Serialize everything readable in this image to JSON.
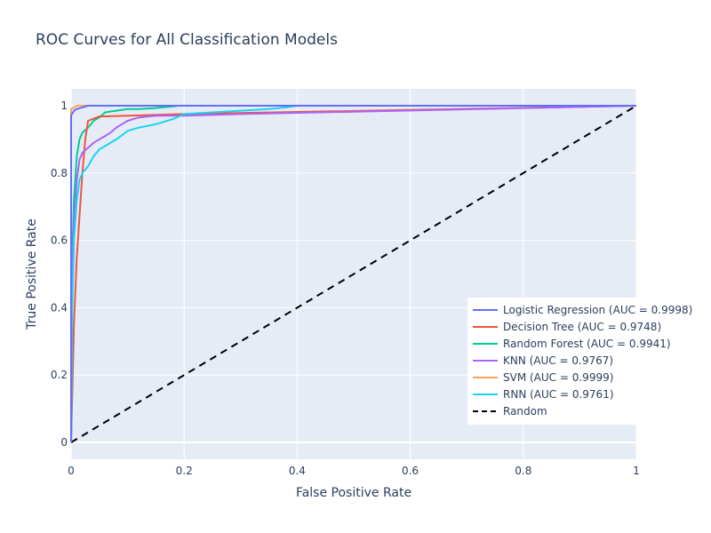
{
  "chart_data": {
    "type": "line",
    "title": "ROC Curves for All Classification Models",
    "xlabel": "False Positive Rate",
    "ylabel": "True Positive Rate",
    "xlim": [
      0,
      1
    ],
    "ylim": [
      -0.05,
      1.05
    ],
    "xticks": [
      "0",
      "0.2",
      "0.4",
      "0.6",
      "0.8",
      "1"
    ],
    "yticks": [
      "0",
      "0.2",
      "0.4",
      "0.6",
      "0.8",
      "1"
    ],
    "grid": true,
    "legend_position": "bottom-right",
    "plot_background": "#E5ECF6",
    "series": [
      {
        "name": "Logistic Regression (AUC = 0.9998)",
        "color": "#636EFA",
        "dash": "solid",
        "x": [
          0,
          0,
          0.005,
          0.01,
          0.02,
          0.03,
          0.05,
          1
        ],
        "y": [
          0,
          0.97,
          0.985,
          0.99,
          0.995,
          1.0,
          1.0,
          1.0
        ]
      },
      {
        "name": "Decision Tree (AUC = 0.9748)",
        "color": "#EF553B",
        "dash": "solid",
        "x": [
          0,
          0.005,
          0.01,
          0.02,
          0.025,
          0.03,
          0.05,
          0.1,
          0.2,
          1
        ],
        "y": [
          0,
          0.35,
          0.55,
          0.8,
          0.9,
          0.955,
          0.968,
          0.97,
          0.975,
          1.0
        ]
      },
      {
        "name": "Random Forest (AUC = 0.9941)",
        "color": "#00CC96",
        "dash": "solid",
        "x": [
          0,
          0.002,
          0.005,
          0.01,
          0.015,
          0.02,
          0.03,
          0.04,
          0.05,
          0.06,
          0.08,
          0.1,
          0.12,
          0.15,
          0.18,
          0.19
        ],
        "y": [
          0,
          0.55,
          0.72,
          0.85,
          0.9,
          0.92,
          0.935,
          0.955,
          0.965,
          0.98,
          0.985,
          0.99,
          0.99,
          0.993,
          0.998,
          1.0
        ]
      },
      {
        "name": "KNN (AUC = 0.9767)",
        "color": "#AB63FA",
        "dash": "solid",
        "x": [
          0,
          0.002,
          0.005,
          0.01,
          0.015,
          0.02,
          0.03,
          0.04,
          0.05,
          0.06,
          0.07,
          0.08,
          0.09,
          0.1,
          0.12,
          0.15,
          0.2,
          0.3,
          1
        ],
        "y": [
          0,
          0.5,
          0.65,
          0.78,
          0.84,
          0.86,
          0.875,
          0.89,
          0.9,
          0.91,
          0.92,
          0.935,
          0.945,
          0.955,
          0.965,
          0.97,
          0.97,
          0.975,
          1.0
        ]
      },
      {
        "name": "SVM (AUC = 0.9999)",
        "color": "#FFA15A",
        "dash": "solid",
        "x": [
          0,
          0,
          0.005,
          0.01,
          1
        ],
        "y": [
          0,
          0.99,
          0.995,
          1.0,
          1.0
        ]
      },
      {
        "name": "RNN (AUC = 0.9761)",
        "color": "#19D3F3",
        "dash": "solid",
        "x": [
          0,
          0.002,
          0.005,
          0.01,
          0.015,
          0.02,
          0.03,
          0.04,
          0.05,
          0.06,
          0.08,
          0.1,
          0.12,
          0.15,
          0.18,
          0.2,
          0.25,
          0.3,
          0.35,
          0.38,
          0.4,
          1
        ],
        "y": [
          0,
          0.4,
          0.6,
          0.72,
          0.78,
          0.8,
          0.82,
          0.85,
          0.87,
          0.88,
          0.9,
          0.925,
          0.935,
          0.945,
          0.96,
          0.975,
          0.98,
          0.985,
          0.99,
          0.995,
          1.0,
          1.0
        ]
      },
      {
        "name": "Random",
        "color": "#000000",
        "dash": "dash",
        "x": [
          0,
          1
        ],
        "y": [
          0,
          1
        ]
      }
    ]
  }
}
